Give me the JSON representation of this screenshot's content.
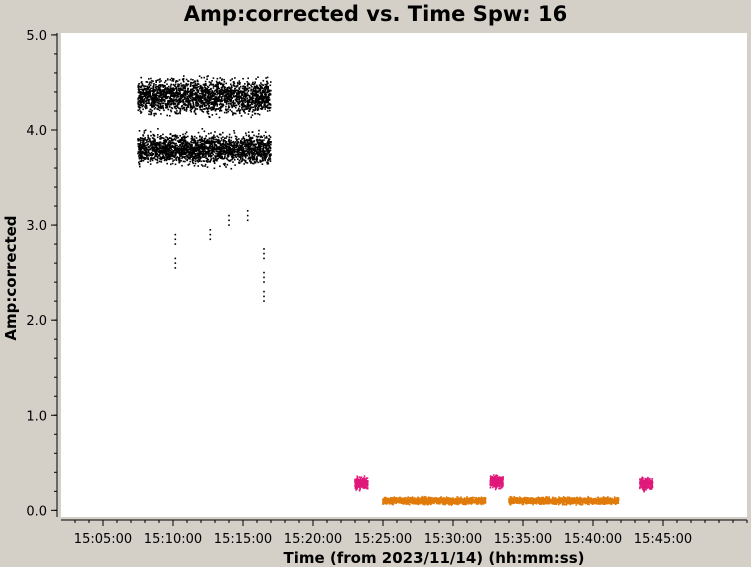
{
  "chart_data": {
    "type": "scatter",
    "title": "Amp:corrected vs. Time Spw: 16",
    "xlabel": "Time (from 2023/11/14) (hh:mm:ss)",
    "ylabel": "Amp:corrected",
    "xlim": [
      "15:02:00",
      "15:51:00"
    ],
    "ylim": [
      -0.07,
      5.02
    ],
    "x_ticks": [
      "15:05:00",
      "15:10:00",
      "15:15:00",
      "15:20:00",
      "15:25:00",
      "15:30:00",
      "15:35:00",
      "15:40:00",
      "15:45:00"
    ],
    "y_ticks": [
      "0.0",
      "1.0",
      "2.0",
      "3.0",
      "4.0",
      "5.0"
    ],
    "grid": false,
    "series": [
      {
        "color": "#000000",
        "points_desc": "dense point clusters",
        "clusters": [
          {
            "x_start": "15:07:30",
            "x_end": "15:17:00",
            "y_center": 4.35,
            "y_spread": 0.25
          },
          {
            "x_start": "15:07:30",
            "x_end": "15:17:00",
            "y_center": 3.8,
            "y_spread": 0.22
          }
        ],
        "outliers": [
          {
            "x": "15:10:10",
            "y": 2.6
          },
          {
            "x": "15:10:10",
            "y": 2.85
          },
          {
            "x": "15:12:40",
            "y": 2.9
          },
          {
            "x": "15:16:30",
            "y": 2.25
          },
          {
            "x": "15:16:30",
            "y": 2.45
          },
          {
            "x": "15:16:30",
            "y": 2.7
          },
          {
            "x": "15:14:00",
            "y": 3.05
          },
          {
            "x": "15:15:20",
            "y": 3.1
          }
        ]
      },
      {
        "color": "#e0187a",
        "clusters": [
          {
            "x_start": "15:23:00",
            "x_end": "15:23:55",
            "y_center": 0.28,
            "y_spread": 0.09
          },
          {
            "x_start": "15:32:40",
            "x_end": "15:33:35",
            "y_center": 0.3,
            "y_spread": 0.09
          },
          {
            "x_start": "15:43:20",
            "x_end": "15:44:15",
            "y_center": 0.28,
            "y_spread": 0.09
          }
        ]
      },
      {
        "color": "#e07b0a",
        "clusters": [
          {
            "x_start": "15:25:00",
            "x_end": "15:32:20",
            "y_center": 0.1,
            "y_spread": 0.05
          },
          {
            "x_start": "15:34:00",
            "x_end": "15:41:50",
            "y_center": 0.1,
            "y_spread": 0.05
          }
        ]
      }
    ]
  }
}
